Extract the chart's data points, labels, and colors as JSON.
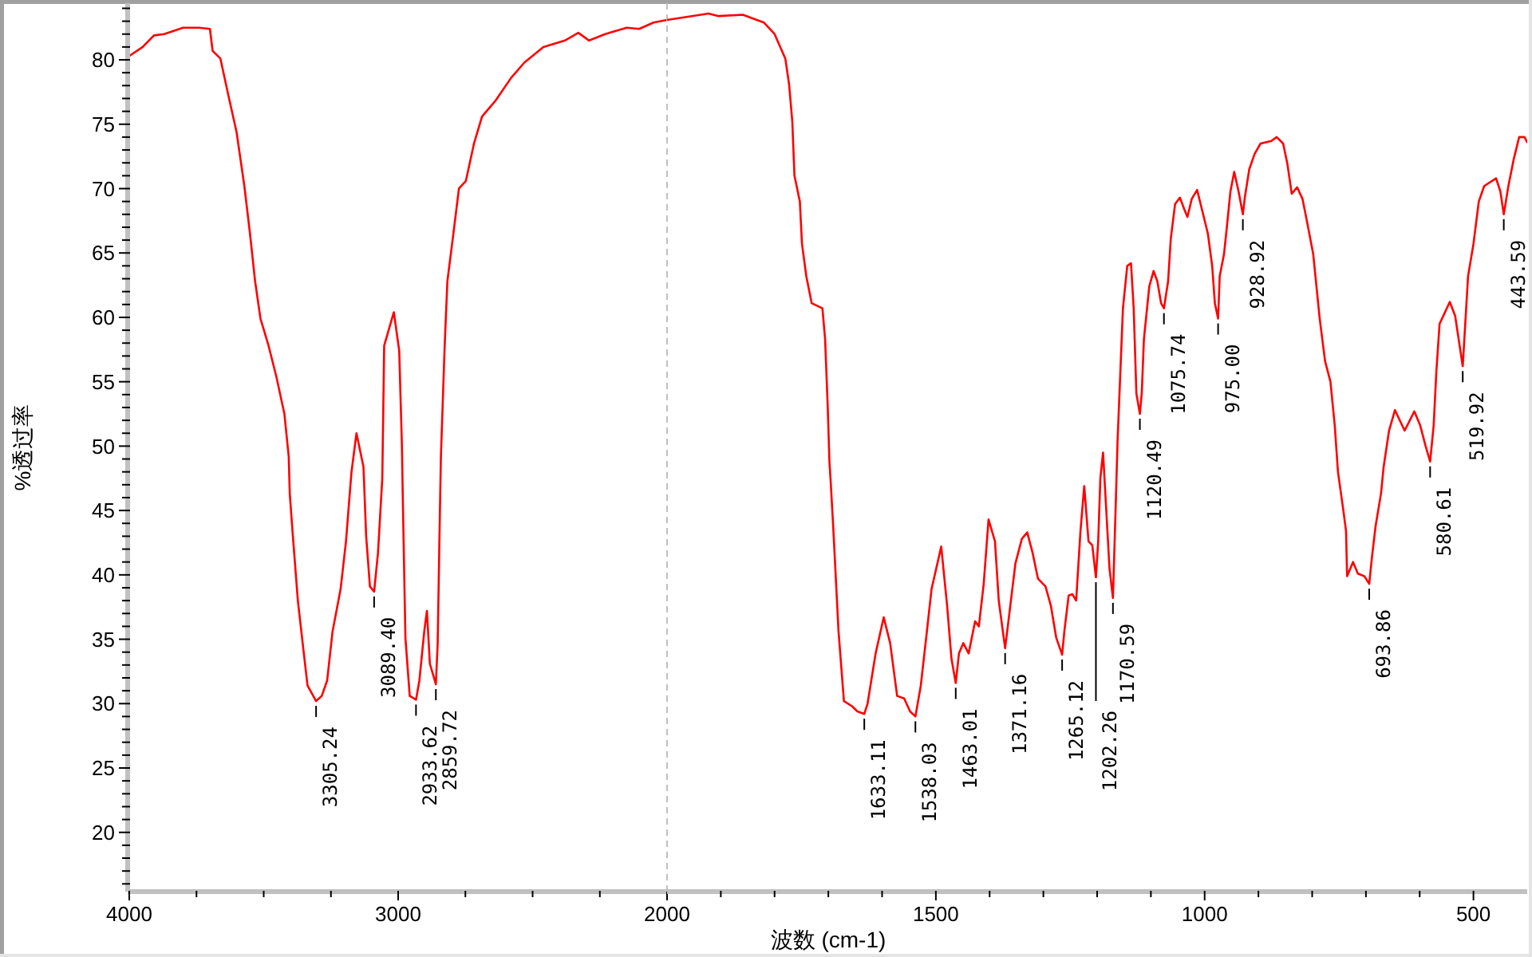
{
  "chart_data": [
    {
      "type": "line",
      "ylabel": "%透过率",
      "xlim": [
        4000,
        2000
      ],
      "ylim": [
        15.4,
        84.4
      ],
      "xticks": [
        4000,
        {
          "value": 3750,
          "label": null
        },
        {
          "value": 3500,
          "label": null
        },
        {
          "value": 3250,
          "label": null
        },
        3000,
        {
          "value": 2750,
          "label": null
        },
        {
          "value": 2500,
          "label": null
        },
        {
          "value": 2250,
          "label": null
        },
        2000
      ],
      "yticks": [
        {
          "value": 16,
          "label": null
        },
        {
          "value": 17,
          "label": null
        },
        {
          "value": 18,
          "label": null
        },
        {
          "value": 19,
          "label": null
        },
        20,
        {
          "value": 21,
          "label": null
        },
        {
          "value": 22,
          "label": null
        },
        {
          "value": 23,
          "label": null
        },
        {
          "value": 24,
          "label": null
        },
        25,
        {
          "value": 26,
          "label": null
        },
        {
          "value": 27,
          "label": null
        },
        {
          "value": 28,
          "label": null
        },
        {
          "value": 29,
          "label": null
        },
        30,
        {
          "value": 31,
          "label": null
        },
        {
          "value": 32,
          "label": null
        },
        {
          "value": 33,
          "label": null
        },
        {
          "value": 34,
          "label": null
        },
        35,
        {
          "value": 36,
          "label": null
        },
        {
          "value": 37,
          "label": null
        },
        {
          "value": 38,
          "label": null
        },
        {
          "value": 39,
          "label": null
        },
        40,
        {
          "value": 41,
          "label": null
        },
        {
          "value": 42,
          "label": null
        },
        {
          "value": 43,
          "label": null
        },
        {
          "value": 44,
          "label": null
        },
        45,
        {
          "value": 46,
          "label": null
        },
        {
          "value": 47,
          "label": null
        },
        {
          "value": 48,
          "label": null
        },
        {
          "value": 49,
          "label": null
        },
        50,
        {
          "value": 51,
          "label": null
        },
        {
          "value": 52,
          "label": null
        },
        {
          "value": 53,
          "label": null
        },
        {
          "value": 54,
          "label": null
        },
        55,
        {
          "value": 56,
          "label": null
        },
        {
          "value": 57,
          "label": null
        },
        {
          "value": 58,
          "label": null
        },
        {
          "value": 59,
          "label": null
        },
        60,
        {
          "value": 61,
          "label": null
        },
        {
          "value": 62,
          "label": null
        },
        {
          "value": 63,
          "label": null
        },
        {
          "value": 64,
          "label": null
        },
        65,
        {
          "value": 66,
          "label": null
        },
        {
          "value": 67,
          "label": null
        },
        {
          "value": 68,
          "label": null
        },
        {
          "value": 69,
          "label": null
        },
        70,
        {
          "value": 71,
          "label": null
        },
        {
          "value": 72,
          "label": null
        },
        {
          "value": 73,
          "label": null
        },
        {
          "value": 74,
          "label": null
        },
        75,
        {
          "value": 76,
          "label": null
        },
        {
          "value": 77,
          "label": null
        },
        {
          "value": 78,
          "label": null
        },
        {
          "value": 79,
          "label": null
        },
        80,
        {
          "value": 81,
          "label": null
        },
        {
          "value": 82,
          "label": null
        },
        {
          "value": 83,
          "label": null
        },
        {
          "value": 84,
          "label": null
        }
      ],
      "series": [
        {
          "color": "#ff0000",
          "x": [
            4000,
            3950,
            3908,
            3870,
            3800,
            3740,
            3700,
            3690,
            3661,
            3631,
            3601,
            3572,
            3551,
            3532,
            3512,
            3482,
            3453,
            3423,
            3407,
            3403,
            3393,
            3373,
            3353,
            3337,
            3305.24,
            3284,
            3264,
            3244,
            3214,
            3194,
            3174,
            3155,
            3129,
            3119,
            3105,
            3089.4,
            3075,
            3059,
            3052,
            3016,
            2996,
            2986,
            2983,
            2973,
            2957,
            2933.62,
            2921,
            2903,
            2893,
            2882,
            2859.72,
            2853,
            2847,
            2841,
            2827,
            2817,
            2797,
            2774,
            2748,
            2718,
            2688,
            2639,
            2580,
            2530,
            2460,
            2380,
            2330,
            2290,
            2230,
            2150,
            2104,
            2050,
            2000
          ],
          "values": [
            80.3,
            81.0,
            81.9,
            82.0,
            82.5,
            82.5,
            82.4,
            80.7,
            80.1,
            77.2,
            74.4,
            70.2,
            66.5,
            62.8,
            59.9,
            57.8,
            55.4,
            52.5,
            49.2,
            46.3,
            43.4,
            38.0,
            34.3,
            31.4,
            30.2,
            30.6,
            31.8,
            35.6,
            38.9,
            42.6,
            47.9,
            51.0,
            48.4,
            43.0,
            39.1,
            38.7,
            41.7,
            47.5,
            57.8,
            60.4,
            57.4,
            50.0,
            46.3,
            35.1,
            30.6,
            30.3,
            31.8,
            35.6,
            37.2,
            33.1,
            31.5,
            34.7,
            42.2,
            49.2,
            57.8,
            62.8,
            66.1,
            70.0,
            70.6,
            73.5,
            75.6,
            76.8,
            78.6,
            79.8,
            81.0,
            81.5,
            82.1,
            81.5,
            82.0,
            82.5,
            82.4,
            82.9,
            83.1
          ]
        }
      ],
      "annotations": [
        {
          "text": "3305.24",
          "x": 3305.24,
          "y": 30.2
        },
        {
          "text": "3089.40",
          "x": 3089.4,
          "y": 38.7
        },
        {
          "text": "2933.62",
          "x": 2933.62,
          "y": 30.3
        },
        {
          "text": "2859.72",
          "x": 2859.72,
          "y": 31.5
        }
      ]
    },
    {
      "type": "line",
      "xlabel": "波数 (cm-1)",
      "xlim": [
        2000,
        400
      ],
      "ylim": [
        15.4,
        84.4
      ],
      "tick_labels": "x",
      "xticks": [
        {
          "value": 1900,
          "label": null
        },
        {
          "value": 1800,
          "label": null
        },
        {
          "value": 1700,
          "label": null
        },
        {
          "value": 1600,
          "label": null
        },
        1500,
        {
          "value": 1400,
          "label": null
        },
        {
          "value": 1300,
          "label": null
        },
        {
          "value": 1200,
          "label": null
        },
        {
          "value": 1100,
          "label": null
        },
        1000,
        {
          "value": 900,
          "label": null
        },
        {
          "value": 800,
          "label": null
        },
        {
          "value": 700,
          "label": null
        },
        {
          "value": 600,
          "label": null
        },
        500
      ],
      "ref_lines": [
        {
          "axis": "x",
          "value": 2000,
          "color": "#c0c0c0",
          "line_style": "dashed"
        }
      ],
      "series": [
        {
          "color": "#ff0000",
          "x": [
            2000,
            1923,
            1904,
            1859,
            1820,
            1800,
            1780,
            1773,
            1767,
            1763,
            1753,
            1749,
            1741,
            1731,
            1711,
            1706,
            1701,
            1698,
            1696,
            1691,
            1681,
            1671,
            1656,
            1646,
            1633.11,
            1627,
            1612,
            1597,
            1585,
            1572,
            1559,
            1548,
            1538.03,
            1528,
            1518,
            1508,
            1490,
            1479,
            1471,
            1463.01,
            1457,
            1449,
            1439,
            1427,
            1420,
            1411,
            1402,
            1390,
            1383,
            1371.16,
            1365,
            1352,
            1340,
            1330,
            1320,
            1310,
            1296,
            1286,
            1276,
            1265.12,
            1261,
            1253,
            1246,
            1239,
            1231,
            1224,
            1216,
            1209,
            1202.26,
            1198,
            1194,
            1189,
            1177,
            1170.59,
            1166,
            1162,
            1152,
            1144,
            1137,
            1132,
            1127,
            1120.49,
            1117,
            1113,
            1103,
            1095,
            1088,
            1081,
            1075.74,
            1068,
            1063,
            1055,
            1046,
            1038,
            1032,
            1024,
            1014,
            1004,
            994,
            986,
            981,
            975,
            972,
            964,
            958,
            952,
            945,
            937,
            928.92,
            925,
            917,
            907,
            896,
            876,
            866,
            854,
            846,
            838,
            828,
            818,
            809,
            798,
            786,
            776,
            766,
            758,
            752,
            742,
            737,
            735,
            724,
            715,
            703,
            693.86,
            689,
            682,
            672,
            667,
            657,
            646,
            628,
            610,
            599,
            589,
            580.61,
            574,
            569,
            563,
            554,
            544,
            534,
            519.92,
            510,
            500,
            490,
            480,
            458,
            450,
            443.59,
            435,
            425,
            415,
            405,
            400
          ],
          "values": [
            83.1,
            83.6,
            83.4,
            83.5,
            82.9,
            82.0,
            80.1,
            78.1,
            75.2,
            71.0,
            69.0,
            65.7,
            63.2,
            61.1,
            60.7,
            58.3,
            52.9,
            48.8,
            47.5,
            43.8,
            35.6,
            30.2,
            29.8,
            29.4,
            29.2,
            30.0,
            33.9,
            36.7,
            34.7,
            30.6,
            30.4,
            29.4,
            29.0,
            31.4,
            35.1,
            38.9,
            42.2,
            37.6,
            33.5,
            31.6,
            33.9,
            34.7,
            33.9,
            36.4,
            36.0,
            39.3,
            44.3,
            42.6,
            38.0,
            34.3,
            36.4,
            40.9,
            42.8,
            43.3,
            41.7,
            39.7,
            39.1,
            37.6,
            35.1,
            33.8,
            35.6,
            38.4,
            38.5,
            38.0,
            43.4,
            46.9,
            42.6,
            42.3,
            39.8,
            42.6,
            47.5,
            49.5,
            40.5,
            38.2,
            44.6,
            50.4,
            60.7,
            64.0,
            64.2,
            60.7,
            54.1,
            52.5,
            54.1,
            58.3,
            62.4,
            63.6,
            62.8,
            61.1,
            60.7,
            62.8,
            66.1,
            68.8,
            69.3,
            68.4,
            67.8,
            69.2,
            69.9,
            68.2,
            66.5,
            64.0,
            61.1,
            59.9,
            63.2,
            64.9,
            67.3,
            69.8,
            71.3,
            69.8,
            68.0,
            69.4,
            71.5,
            72.7,
            73.5,
            73.7,
            74.0,
            73.5,
            71.9,
            69.6,
            70.1,
            69.2,
            67.3,
            64.9,
            59.9,
            56.6,
            55.0,
            51.6,
            48.0,
            45.0,
            43.4,
            39.9,
            41.0,
            40.1,
            39.9,
            39.3,
            41.3,
            43.8,
            46.3,
            48.4,
            51.2,
            52.8,
            51.2,
            52.7,
            51.6,
            50.0,
            48.8,
            51.6,
            55.8,
            59.5,
            60.3,
            61.2,
            60.1,
            56.2,
            63.2,
            65.7,
            69.0,
            70.2,
            70.8,
            69.8,
            68.0,
            70.2,
            72.3,
            74.0,
            74.0,
            73.6
          ]
        }
      ],
      "annotations": [
        {
          "text": "1633.11",
          "x": 1633.11,
          "y": 29.2
        },
        {
          "text": "1538.03",
          "x": 1538.03,
          "y": 29.0
        },
        {
          "text": "1463.01",
          "x": 1463.01,
          "y": 31.6
        },
        {
          "text": "1371.16",
          "x": 1371.16,
          "y": 34.3
        },
        {
          "text": "1265.12",
          "x": 1265.12,
          "y": 33.8
        },
        {
          "text": "1202.26",
          "x": 1202.26,
          "y": 39.8
        },
        {
          "text": "1170.59",
          "x": 1170.59,
          "y": 38.2
        },
        {
          "text": "1120.49",
          "x": 1120.49,
          "y": 52.5
        },
        {
          "text": "1075.74",
          "x": 1075.74,
          "y": 60.7
        },
        {
          "text": "975.00",
          "x": 975,
          "y": 59.9
        },
        {
          "text": "928.92",
          "x": 928.92,
          "y": 68.0
        },
        {
          "text": "693.86",
          "x": 693.86,
          "y": 39.3
        },
        {
          "text": "580.61",
          "x": 580.61,
          "y": 48.8
        },
        {
          "text": "519.92",
          "x": 519.92,
          "y": 56.2
        },
        {
          "text": "443.59",
          "x": 443.59,
          "y": 68.0
        }
      ]
    }
  ]
}
